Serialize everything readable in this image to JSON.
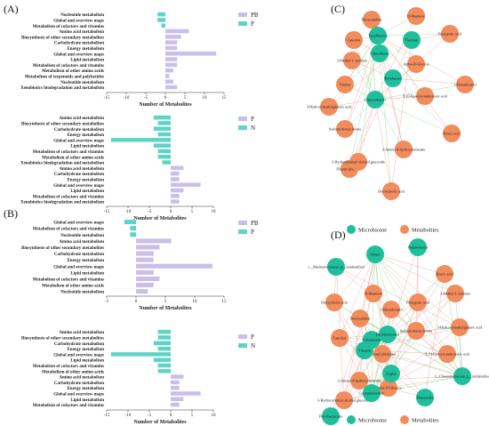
{
  "panels": {
    "A": "(A)",
    "B": "(B)",
    "C": "(C)",
    "D": "(D)"
  },
  "colors": {
    "purple": "#c9bfe8",
    "teal": "#5ed3c7",
    "microbiome": "#1fbf9b",
    "metabolites": "#f28c5c",
    "edge_pos": "#f5a3a3",
    "edge_neg": "#8fdc96"
  },
  "chart_data": [
    {
      "id": "A1",
      "type": "bar",
      "orientation": "horizontal",
      "xlabel": "Number of Metabolites",
      "xlim": [
        -15,
        15
      ],
      "xticks": [
        -15,
        -10,
        -5,
        0,
        5,
        10,
        15
      ],
      "legend": [
        {
          "name": "PB",
          "color_key": "purple"
        },
        {
          "name": "P",
          "color_key": "teal"
        }
      ],
      "categories": [
        "Nucleotide metabolism",
        "Global and overview maps",
        "Metabolism of cofactors and vitamins",
        "Amino acid metabolism",
        "Biosynthesis of other secondary metabolites",
        "Carbohydrate metabolism",
        "Energy metabolism",
        "Global and overview maps",
        "Lipid metabolism",
        "Metabolism of cofactors and vitamins",
        "Metabolism of other amino acids",
        "Metabolism of terpenoids and polyketides",
        "Nucleotide metabolism",
        "Xenobiotics biodegradation and metabolism"
      ],
      "values": [
        -2,
        -2,
        -1,
        6,
        4,
        3,
        3,
        13,
        3,
        3,
        2,
        1,
        2,
        3
      ],
      "groups": [
        "P",
        "P",
        "P",
        "PB",
        "PB",
        "PB",
        "PB",
        "PB",
        "PB",
        "PB",
        "PB",
        "PB",
        "PB",
        "PB"
      ]
    },
    {
      "id": "A2",
      "type": "bar",
      "orientation": "horizontal",
      "xlabel": "Number of Metabolites",
      "xlim": [
        -15,
        10
      ],
      "xticks": [
        -15,
        -10,
        -5,
        0,
        5,
        10
      ],
      "legend": [
        {
          "name": "P",
          "color_key": "purple"
        },
        {
          "name": "N",
          "color_key": "teal"
        }
      ],
      "categories": [
        "Amino acid metabolism",
        "Biosynthesis of other secondary metabolites",
        "Carbohydrate metabolism",
        "Energy metabolism",
        "Global and overview maps",
        "Lipid metabolism",
        "Metabolism of cofactors and vitamins",
        "Metabolism of other amino acids",
        "Xenobiotics biodegradation and metabolism",
        "Amino acid metabolism",
        "Carbohydrate metabolism",
        "Energy metabolism",
        "Global and overview maps",
        "Lipid metabolism",
        "Metabolism of cofactors and vitamins",
        "Xenobiotics biodegradation and metabolism"
      ],
      "values": [
        -4,
        -3,
        -4,
        -3,
        -14,
        -4,
        -3,
        -3,
        -2,
        3,
        2,
        2,
        7,
        3,
        2,
        2
      ],
      "groups": [
        "N",
        "N",
        "N",
        "N",
        "N",
        "N",
        "N",
        "N",
        "N",
        "P",
        "P",
        "P",
        "P",
        "P",
        "P",
        "P"
      ]
    },
    {
      "id": "B1",
      "type": "bar",
      "orientation": "horizontal",
      "xlabel": "Number of Metabolites",
      "xlim": [
        -5,
        15
      ],
      "xticks": [
        -5,
        0,
        5,
        10,
        15
      ],
      "legend": [
        {
          "name": "PB",
          "color_key": "purple"
        },
        {
          "name": "P",
          "color_key": "teal"
        }
      ],
      "categories": [
        "Global and overview maps",
        "Metabolism of cofactors and vitamins",
        "Nucleotide metabolism",
        "Amino acid metabolism",
        "Biosynthesis of other secondary metabolites",
        "Carbohydrate metabolism",
        "Energy metabolism",
        "Global and overview maps",
        "Lipid metabolism",
        "Metabolism of cofactors and vitamins",
        "Metabolism of other amino acids",
        "Nucleotide metabolism"
      ],
      "values": [
        -2,
        -1,
        -1,
        6,
        4,
        3,
        3,
        13,
        3,
        4,
        3,
        2
      ],
      "groups": [
        "P",
        "P",
        "P",
        "PB",
        "PB",
        "PB",
        "PB",
        "PB",
        "PB",
        "PB",
        "PB",
        "PB"
      ]
    },
    {
      "id": "B2",
      "type": "bar",
      "orientation": "horizontal",
      "xlabel": "Number of Metabolites",
      "xlim": [
        -15,
        10
      ],
      "xticks": [
        -15,
        -10,
        -5,
        0,
        5,
        10
      ],
      "legend": [
        {
          "name": "P",
          "color_key": "purple"
        },
        {
          "name": "N",
          "color_key": "teal"
        }
      ],
      "categories": [
        "Amino acid metabolism",
        "Biosynthesis of other secondary metabolites",
        "Carbohydrate metabolism",
        "Energy metabolism",
        "Global and overview maps",
        "Lipid metabolism",
        "Metabolism of cofactors and vitamins",
        "Metabolism of other amino acids",
        "Amino acid metabolism",
        "Carbohydrate metabolism",
        "Energy metabolism",
        "Global and overview maps",
        "Lipid metabolism",
        "Metabolism of cofactors and vitamins"
      ],
      "values": [
        -3,
        -3,
        -4,
        -3,
        -14,
        -4,
        -3,
        -3,
        3,
        2,
        2,
        7,
        3,
        2
      ],
      "groups": [
        "N",
        "N",
        "N",
        "N",
        "N",
        "N",
        "N",
        "N",
        "P",
        "P",
        "P",
        "P",
        "P",
        "P"
      ]
    }
  ],
  "networks": {
    "C": {
      "legend": [
        {
          "name": "Microbiome",
          "color_key": "microbiome"
        },
        {
          "name": "Metabolites",
          "color_key": "metabolites"
        }
      ],
      "nodes": [
        {
          "label": "Deoxyuridine",
          "kind": "metabolite"
        },
        {
          "label": "D-Mannose",
          "kind": "metabolite"
        },
        {
          "label": "Catechol",
          "kind": "metabolite"
        },
        {
          "label": "Tepidimonas",
          "kind": "microbe"
        },
        {
          "label": "Thermus",
          "kind": "microbe"
        },
        {
          "label": "Pelargonic acid",
          "kind": "metabolite"
        },
        {
          "label": "3-Methyl-L-tyrosine",
          "kind": "metabolite"
        },
        {
          "label": "Alpha-D-Glucose",
          "kind": "metabolite"
        },
        {
          "label": "Taurine",
          "kind": "metabolite"
        },
        {
          "label": "Chloroflexus",
          "kind": "microbe"
        },
        {
          "label": "3-Hydroxymethylglutaric acid",
          "kind": "metabolite"
        },
        {
          "label": "1-Hexadecanol",
          "kind": "metabolite"
        },
        {
          "label": "9,10-Epoxyoctadecanoic acid",
          "kind": "metabolite"
        },
        {
          "label": "Sodium deoxycholate",
          "kind": "metabolite"
        },
        {
          "label": "Dibutyl phthalate",
          "kind": "metabolite"
        },
        {
          "label": "Erucic acid",
          "kind": "metabolite"
        },
        {
          "label": "3-Hydroxybenzyl alcohol glucoside",
          "kind": "metabolite"
        },
        {
          "label": "3-Amino-4-hydroxybenzoate",
          "kind": "metabolite"
        },
        {
          "label": "Deoxycholic acid",
          "kind": "metabolite"
        },
        {
          "label": "Chryseobacter",
          "kind": "microbe"
        },
        {
          "label": "Bryobacter",
          "kind": "microbe"
        }
      ]
    },
    "D": {
      "legend": [
        {
          "name": "Microbiome",
          "color_key": "microbiome"
        },
        {
          "name": "Metabolites",
          "color_key": "metabolites"
        }
      ],
      "nodes": [
        {
          "label": "Others",
          "kind": "microbe"
        },
        {
          "label": "Pseudomonas",
          "kind": "microbe"
        },
        {
          "label": "f__Marinomonaceae_g__unidentified",
          "kind": "microbe"
        },
        {
          "label": "Erucic acid",
          "kind": "metabolite"
        },
        {
          "label": "3-Methyl-L-tyrosine",
          "kind": "metabolite"
        },
        {
          "label": "Deoxycholic acid",
          "kind": "metabolite"
        },
        {
          "label": "Pelargonic acid",
          "kind": "metabolite"
        },
        {
          "label": "Catechol",
          "kind": "metabolite"
        },
        {
          "label": "D-Mannose",
          "kind": "metabolite"
        },
        {
          "label": "3-Hydroxymethylglutaric acid",
          "kind": "metabolite"
        },
        {
          "label": "Sodium deoxycholate",
          "kind": "metabolite"
        },
        {
          "label": "Deoxyuridine",
          "kind": "metabolite"
        },
        {
          "label": "1-Hexadecanol",
          "kind": "metabolite"
        },
        {
          "label": "9,10-Epoxyoctadecanoic acid",
          "kind": "metabolite"
        },
        {
          "label": "Dibutyl phthalate",
          "kind": "metabolite"
        },
        {
          "label": "Alpha-D-Glucose",
          "kind": "metabolite"
        },
        {
          "label": "3-Amino-4-hydroxybenzoate",
          "kind": "metabolite"
        },
        {
          "label": "f__Chaetomonaceae_g__unidentified",
          "kind": "microbe"
        },
        {
          "label": "Daeryuella",
          "kind": "microbe"
        },
        {
          "label": "Zoglea",
          "kind": "microbe"
        },
        {
          "label": "3-Hydroxybenzyl alcohol glucoside",
          "kind": "metabolite"
        },
        {
          "label": "Corynebacterium",
          "kind": "microbe"
        },
        {
          "label": "Flavobacterium",
          "kind": "microbe"
        },
        {
          "label": "Comamonas",
          "kind": "microbe"
        },
        {
          "label": "Dechloromonas",
          "kind": "microbe"
        },
        {
          "label": "Thauera",
          "kind": "microbe"
        }
      ]
    }
  }
}
